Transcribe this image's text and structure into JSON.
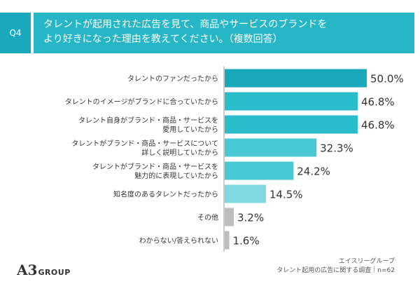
{
  "header": {
    "question_id": "Q4",
    "question_text": "タレントが起用された広告を見て、商品やサービスのブランドを\nより好きになった理由を教えてください。（複数回答）"
  },
  "footer": {
    "source_line1": "エイスリーグループ",
    "source_line2": "タレント起用の広告に関する調査｜n=62",
    "logo_mark": "A3",
    "logo_text": "GROUP"
  },
  "colors": {
    "bar_top": "#1aa9bc",
    "bar_mid": "#2bbccc",
    "bar_light": "#49c8d6",
    "bar_lighter": "#7fd8e2",
    "bar_gray": "#bdbdbd",
    "axis": "#999999"
  },
  "chart_data": {
    "type": "bar",
    "orientation": "horizontal",
    "categories": [
      "タレントのファンだったから",
      "タレントのイメージがブランドに合っていたから",
      "タレント自身がブランド・商品・サービスを\n愛用していたから",
      "タレントがブランド・商品・サービスについて\n詳しく説明していたから",
      "タレントがブランド・商品・サービスを\n魅力的に表現していたから",
      "知名度のあるタレントだったから",
      "その他",
      "わからない/答えられない"
    ],
    "values": [
      50.0,
      46.8,
      46.8,
      32.3,
      24.2,
      14.5,
      3.2,
      1.6
    ],
    "value_labels": [
      "50.0%",
      "46.8%",
      "46.8%",
      "32.3%",
      "24.2%",
      "14.5%",
      "3.2%",
      "1.6%"
    ],
    "xlim": [
      0,
      55
    ],
    "grid": false,
    "legend": "none"
  }
}
